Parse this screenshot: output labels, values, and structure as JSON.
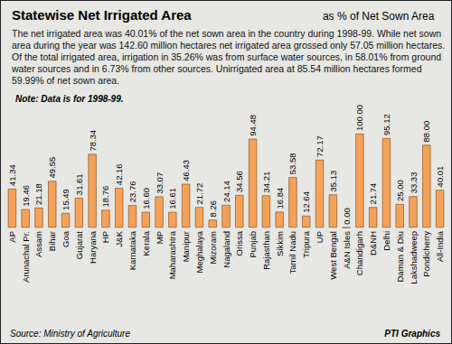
{
  "chart_data": {
    "type": "bar",
    "title": "Statewise Net Irrigated Area",
    "subtitle": "as % of Net Sown Area",
    "description": "The net irrigated area was 40.01% of the net sown area in the country during 1998-99. While net sown area during the year was 142.60 million hectares net irrigated area grossed only 57.05 million hectares. Of the total irrigated area, irrigation in 35.26% was from surface water sources, in 58.01% from ground water sources and in 6.73% from other sources. Unirrigated area at 85.54 million hectares formed 59.99% of net sown area.",
    "note_label": "Note:",
    "note": "Data is for 1998-99.",
    "source": "Source: Ministry of Agriculture",
    "credit": "PTI Graphics",
    "categories": [
      "AP",
      "Arunachal Pr.",
      "Assam",
      "Bihar",
      "Goa",
      "Gujarat",
      "Haryana",
      "HP",
      "J&K",
      "Karnataka",
      "Kerala",
      "MP",
      "Maharashtra",
      "Manipur",
      "Meghalaya",
      "Mizoram",
      "Nagaland",
      "Orissa",
      "Punjab",
      "Rajasthan",
      "Sikkim",
      "Tamil Nadu",
      "Tripura",
      "UP",
      "West Bengal",
      "A&N Isles",
      "Chandigarh",
      "D&NH",
      "Delhi",
      "Daman & Diu",
      "Lakshadweep",
      "Pondicherry",
      "All-India"
    ],
    "values": [
      41.34,
      19.46,
      21.18,
      49.55,
      15.49,
      31.61,
      78.34,
      18.76,
      42.16,
      23.76,
      16.6,
      33.07,
      16.61,
      46.43,
      21.72,
      8.26,
      24.14,
      34.56,
      94.48,
      34.21,
      16.84,
      53.58,
      12.64,
      72.17,
      35.13,
      0,
      100,
      21.74,
      95.12,
      25,
      33.33,
      88,
      40.01
    ],
    "value_labels": [
      "41.34",
      "19.46",
      "21.18",
      "49.55",
      "15.49",
      "31.61",
      "78.34",
      "18.76",
      "42.16",
      "23.76",
      "16.60",
      "33.07",
      "16.61",
      "46.43",
      "21.72",
      "8.26",
      "24.14",
      "34.56",
      "94.48",
      "34.21",
      "16.84",
      "53.58",
      "12.64",
      "72.17",
      "35.13",
      "0.00",
      "100.00",
      "21.74",
      "95.12",
      "25.00",
      "33.33",
      "88.00",
      "40.01"
    ],
    "color": "#f4a259",
    "data_labels": true,
    "tick_labels": "x"
  }
}
